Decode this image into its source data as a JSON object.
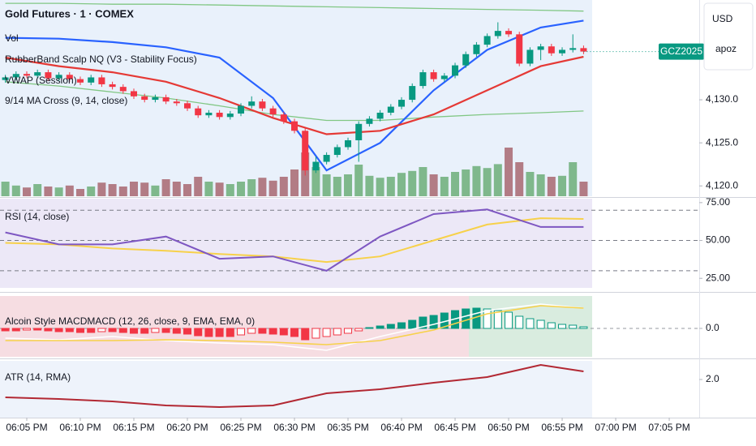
{
  "chart_data": [
    {
      "type": "candlestick",
      "title": "Gold Futures · 1 · COMEX",
      "indicators": [
        "Vol",
        "RubberBand Scalp NQ (V3 - Stability Focus)",
        "VWAP (Session)",
        "9/14 MA Cross (9, 14, close)"
      ],
      "x": [
        3,
        4,
        5,
        6,
        7,
        8,
        9,
        10,
        11,
        12,
        13,
        14,
        15,
        16,
        17,
        18,
        19,
        20,
        21,
        22,
        23,
        24,
        25,
        26,
        27,
        28,
        29,
        30,
        31,
        32,
        33,
        34,
        35,
        36,
        37,
        38,
        39,
        40,
        41,
        42,
        43,
        44,
        45,
        46,
        47,
        48,
        49,
        50,
        51,
        52,
        53,
        54,
        55,
        56,
        57
      ],
      "open": [
        4132.3,
        4132.6,
        4133.0,
        4132.8,
        4133.2,
        4132.5,
        4132.9,
        4132.4,
        4132.0,
        4132.6,
        4131.8,
        4131.5,
        4131.0,
        4130.4,
        4130.0,
        4130.3,
        4129.8,
        4129.6,
        4129.0,
        4128.2,
        4128.5,
        4128.0,
        4128.4,
        4129.3,
        4129.8,
        4129.0,
        4128.3,
        4127.5,
        4126.4,
        4121.8,
        4122.8,
        4123.6,
        4124.5,
        4125.3,
        4127.2,
        4127.8,
        4128.5,
        4129.2,
        4130.0,
        4131.6,
        4133.2,
        4132.4,
        4132.8,
        4134.0,
        4135.3,
        4136.4,
        4137.4,
        4138.0,
        4137.6,
        4134.2,
        4135.8,
        4136.2,
        4135.4,
        4135.8,
        4136.0
      ],
      "high": [
        4132.9,
        4133.3,
        4133.3,
        4133.5,
        4133.5,
        4133.2,
        4133.2,
        4132.7,
        4132.9,
        4132.9,
        4132.1,
        4131.8,
        4131.3,
        4130.7,
        4130.6,
        4130.6,
        4130.1,
        4129.9,
        4129.3,
        4128.8,
        4128.8,
        4128.7,
        4129.6,
        4130.4,
        4130.1,
        4129.3,
        4128.6,
        4127.8,
        4126.7,
        4123.4,
        4123.9,
        4124.8,
        4125.6,
        4127.5,
        4128.1,
        4128.8,
        4129.5,
        4130.3,
        4131.9,
        4133.5,
        4133.5,
        4133.1,
        4134.3,
        4135.6,
        4136.7,
        4137.7,
        4139.0,
        4138.3,
        4137.9,
        4136.1,
        4136.5,
        4136.5,
        4136.1,
        4137.6,
        4136.3
      ],
      "low": [
        4132.0,
        4132.3,
        4132.5,
        4132.5,
        4132.2,
        4132.2,
        4132.1,
        4131.7,
        4131.7,
        4131.5,
        4131.2,
        4130.7,
        4130.1,
        4129.7,
        4129.7,
        4129.5,
        4129.3,
        4128.7,
        4127.9,
        4127.9,
        4127.7,
        4127.7,
        4128.1,
        4129.0,
        4128.7,
        4128.0,
        4127.2,
        4126.1,
        4121.2,
        4121.5,
        4122.5,
        4123.3,
        4124.2,
        4122.8,
        4126.9,
        4127.5,
        4128.2,
        4128.9,
        4129.7,
        4131.3,
        4132.1,
        4132.1,
        4132.5,
        4133.7,
        4135.0,
        4136.1,
        4137.1,
        4137.3,
        4133.9,
        4133.9,
        4134.6,
        4135.1,
        4135.1,
        4135.5,
        4135.3
      ],
      "close": [
        4132.6,
        4133.0,
        4132.8,
        4133.2,
        4132.5,
        4132.9,
        4132.4,
        4132.0,
        4132.6,
        4131.8,
        4131.5,
        4131.0,
        4130.4,
        4130.0,
        4130.3,
        4129.8,
        4129.6,
        4129.0,
        4128.2,
        4128.5,
        4128.0,
        4128.4,
        4129.3,
        4129.8,
        4129.0,
        4128.3,
        4127.5,
        4126.4,
        4121.8,
        4122.8,
        4123.6,
        4124.5,
        4125.3,
        4127.2,
        4127.8,
        4128.5,
        4129.2,
        4130.0,
        4131.6,
        4133.2,
        4132.4,
        4132.8,
        4134.0,
        4135.3,
        4136.4,
        4137.4,
        4138.0,
        4137.6,
        4134.2,
        4135.8,
        4136.2,
        4135.4,
        4135.8,
        4136.0,
        4135.6
      ],
      "volume": [
        30,
        22,
        18,
        25,
        20,
        18,
        22,
        15,
        20,
        28,
        25,
        20,
        30,
        28,
        22,
        35,
        30,
        25,
        40,
        30,
        28,
        25,
        30,
        35,
        38,
        32,
        40,
        55,
        90,
        60,
        45,
        40,
        45,
        65,
        42,
        38,
        40,
        48,
        52,
        60,
        45,
        40,
        50,
        55,
        62,
        58,
        66,
        100,
        70,
        50,
        45,
        40,
        42,
        70,
        30
      ],
      "up_color": "#089981",
      "down_color": "#f23645",
      "volume_up_color": "#7fb88c",
      "volume_down_color": "#b27c85",
      "line_x": [
        3,
        8,
        13,
        18,
        23,
        28,
        33,
        38,
        43,
        48,
        53,
        57
      ],
      "lines": [
        {
          "color": "#81c784",
          "values": [
            4141.2,
            4141.2,
            4141.1,
            4141.1,
            4141.0,
            4140.9,
            4140.8,
            4140.7,
            4140.6,
            4140.5,
            4140.4,
            4140.3
          ]
        },
        {
          "color": "#81c784",
          "values": [
            4132.1,
            4131.6,
            4130.9,
            4130.2,
            4129.3,
            4128.3,
            4127.6,
            4127.6,
            4128.0,
            4128.3,
            4128.5,
            4128.7
          ]
        },
        {
          "color": "#2962ff",
          "values": [
            4137.2,
            4137.1,
            4136.7,
            4136.1,
            4134.9,
            4130.2,
            4121.8,
            4125.0,
            4131.1,
            4135.8,
            4138.4,
            4139.2
          ]
        },
        {
          "color": "#e53935",
          "values": [
            4134.9,
            4133.9,
            4133.2,
            4132.1,
            4130.2,
            4127.9,
            4126.0,
            4126.4,
            4128.3,
            4131.1,
            4133.9,
            4135.0
          ]
        }
      ],
      "xlim": [
        2.5,
        67.8
      ],
      "xticks": [
        {
          "value": 5,
          "label": "06:05 PM"
        },
        {
          "value": 10,
          "label": "06:10 PM"
        },
        {
          "value": 15,
          "label": "06:15 PM"
        },
        {
          "value": 20,
          "label": "06:20 PM"
        },
        {
          "value": 25,
          "label": "06:25 PM"
        },
        {
          "value": 30,
          "label": "06:30 PM"
        },
        {
          "value": 35,
          "label": "06:35 PM"
        },
        {
          "value": 40,
          "label": "06:40 PM"
        },
        {
          "value": 45,
          "label": "06:45 PM"
        },
        {
          "value": 50,
          "label": "06:50 PM"
        },
        {
          "value": 55,
          "label": "06:55 PM"
        },
        {
          "value": 60,
          "label": "07:00 PM"
        },
        {
          "value": 65,
          "label": "07:05 PM"
        }
      ],
      "ylim": [
        4118.8,
        4141.4
      ],
      "yticks": [
        {
          "value": 4120,
          "label": "4,120.0"
        },
        {
          "value": 4125,
          "label": "4,125.0"
        },
        {
          "value": 4130,
          "label": "4,130.0"
        }
      ],
      "price_tag": "GCZ2025",
      "price_tag_color": "#089981"
    },
    {
      "type": "line",
      "title": "RSI (14, close)",
      "x": [
        3,
        8,
        13,
        18,
        23,
        28,
        33,
        38,
        43,
        48,
        53,
        57
      ],
      "series": [
        {
          "color": "#7e57c2",
          "values": [
            55.3,
            47.4,
            47.4,
            52.6,
            37.9,
            39.5,
            30.0,
            52.6,
            67.4,
            70.5,
            58.9,
            58.9
          ]
        },
        {
          "color": "#f7d14a",
          "values": [
            48.4,
            47.4,
            44.7,
            43.2,
            41.1,
            39.5,
            35.8,
            39.5,
            50.0,
            60.5,
            64.7,
            64.2
          ]
        }
      ],
      "levels": [
        30,
        50,
        70
      ],
      "ylim": [
        18.7,
        77.6
      ],
      "yticks": [
        {
          "value": 25,
          "label": "25.00"
        },
        {
          "value": 50,
          "label": "50.00"
        },
        {
          "value": 75,
          "label": "75.00"
        }
      ]
    },
    {
      "type": "histogram",
      "title": "Alcoin Style MACDMACD (12, 26, close, 9, EMA, EMA, 0)",
      "x": [
        3,
        4,
        5,
        6,
        7,
        8,
        9,
        10,
        11,
        12,
        13,
        14,
        15,
        16,
        17,
        18,
        19,
        20,
        21,
        22,
        23,
        24,
        25,
        26,
        27,
        28,
        29,
        30,
        31,
        32,
        33,
        34,
        35,
        36,
        37,
        38,
        39,
        40,
        41,
        42,
        43,
        44,
        45,
        46,
        47,
        48,
        49,
        50,
        51,
        52,
        53,
        54,
        55,
        56,
        57
      ],
      "values": [
        -0.03,
        -0.03,
        -0.02,
        -0.02,
        -0.03,
        -0.04,
        -0.04,
        -0.05,
        -0.05,
        -0.04,
        -0.04,
        -0.05,
        -0.06,
        -0.06,
        -0.05,
        -0.05,
        -0.06,
        -0.07,
        -0.09,
        -0.1,
        -0.1,
        -0.1,
        -0.08,
        -0.06,
        -0.06,
        -0.07,
        -0.08,
        -0.1,
        -0.14,
        -0.12,
        -0.1,
        -0.08,
        -0.06,
        -0.03,
        0.01,
        0.03,
        0.05,
        0.07,
        0.1,
        0.14,
        0.16,
        0.19,
        0.22,
        0.24,
        0.25,
        0.24,
        0.22,
        0.2,
        0.15,
        0.12,
        0.1,
        0.07,
        0.05,
        0.04,
        0.02
      ],
      "up_color": "#089981",
      "down_color": "#f23645",
      "line_x": [
        3,
        8,
        13,
        18,
        23,
        28,
        33,
        38,
        43,
        48,
        53,
        57
      ],
      "series": [
        {
          "color": "#ffffff",
          "values": [
            -0.12,
            -0.14,
            -0.1,
            -0.15,
            -0.18,
            -0.2,
            -0.27,
            -0.1,
            0.05,
            0.22,
            0.3,
            0.25
          ]
        },
        {
          "color": "#f7d14a",
          "values": [
            -0.15,
            -0.15,
            -0.15,
            -0.14,
            -0.15,
            -0.17,
            -0.2,
            -0.15,
            -0.02,
            0.18,
            0.28,
            0.25
          ]
        }
      ],
      "ylim": [
        -0.35,
        0.4
      ],
      "yticks": [
        {
          "value": 0,
          "label": "0.0"
        }
      ]
    },
    {
      "type": "line",
      "title": "ATR (14, RMA)",
      "x": [
        3,
        8,
        13,
        18,
        23,
        28,
        33,
        38,
        43,
        48,
        53,
        57
      ],
      "series": [
        {
          "color": "#b22833",
          "values": [
            1.56,
            1.52,
            1.46,
            1.36,
            1.32,
            1.36,
            1.66,
            1.76,
            1.92,
            2.06,
            2.36,
            2.2
          ]
        }
      ],
      "ylim": [
        1.06,
        2.46
      ],
      "yticks": [
        {
          "value": 2,
          "label": "2.0"
        }
      ]
    }
  ],
  "price_scale": {
    "currency": "USD",
    "user": "apoz"
  }
}
